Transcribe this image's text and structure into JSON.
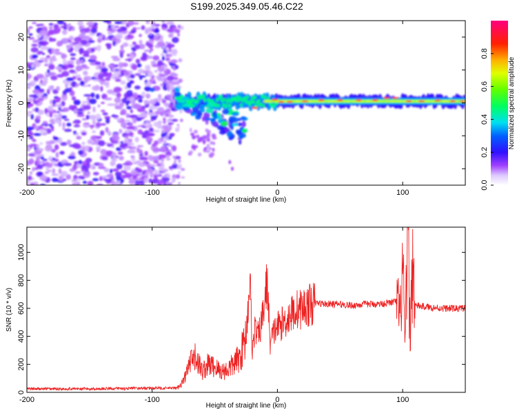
{
  "title": "S199.2025.349.05.46.C22",
  "chart_data": [
    {
      "type": "heatmap",
      "xlabel": "Height of straight line (km)",
      "ylabel": "Frequency (Hz)",
      "xlim": [
        -200,
        150
      ],
      "ylim": [
        -25,
        25
      ],
      "xticks": [
        -200,
        -100,
        0,
        100
      ],
      "yticks": [
        20,
        10,
        0,
        -10,
        -20
      ],
      "colorbar": {
        "label": "Normalized spectral amplitude",
        "range": [
          0,
          1
        ],
        "ticks": [
          0.0,
          0.2,
          0.4,
          0.6,
          0.8
        ]
      },
      "features": [
        {
          "name": "noise",
          "x": [
            -200,
            -80
          ],
          "y": [
            -25,
            25
          ],
          "amplitude": 0.05
        },
        {
          "name": "coherent_band",
          "x": [
            -80,
            150
          ],
          "center_hz": 0.5,
          "amplitude": 0.9
        },
        {
          "name": "scattered_tail",
          "x": [
            -80,
            -25
          ],
          "y": [
            -10,
            3
          ],
          "amplitude": 0.35
        }
      ]
    },
    {
      "type": "line",
      "xlabel": "Height of straight line (km)",
      "ylabel": "SNR (10 * v/v)",
      "xlim": [
        -200,
        150
      ],
      "ylim": [
        0,
        1180
      ],
      "xticks": [
        -200,
        -100,
        0,
        100
      ],
      "yticks": [
        0,
        200,
        400,
        600,
        800,
        1000
      ],
      "series": [
        {
          "name": "SNR",
          "color": "#ee2222",
          "x": [
            -200,
            -150,
            -100,
            -80,
            -75,
            -70,
            -65,
            -60,
            -55,
            -50,
            -45,
            -40,
            -35,
            -30,
            -25,
            -22,
            -20,
            -18,
            -15,
            -12,
            -8,
            -6,
            -4,
            -2,
            0,
            5,
            10,
            15,
            20,
            25,
            30,
            40,
            50,
            60,
            70,
            80,
            90,
            95,
            98,
            100,
            102,
            104,
            106,
            108,
            110,
            120,
            130,
            140,
            150
          ],
          "values": [
            25,
            25,
            30,
            30,
            80,
            200,
            250,
            150,
            200,
            180,
            150,
            160,
            200,
            250,
            400,
            820,
            300,
            450,
            400,
            530,
            800,
            350,
            400,
            450,
            470,
            500,
            550,
            590,
            600,
            620,
            640,
            630,
            630,
            620,
            630,
            630,
            640,
            650,
            500,
            920,
            300,
            1180,
            400,
            950,
            620,
            610,
            600,
            600,
            600
          ]
        }
      ]
    }
  ]
}
